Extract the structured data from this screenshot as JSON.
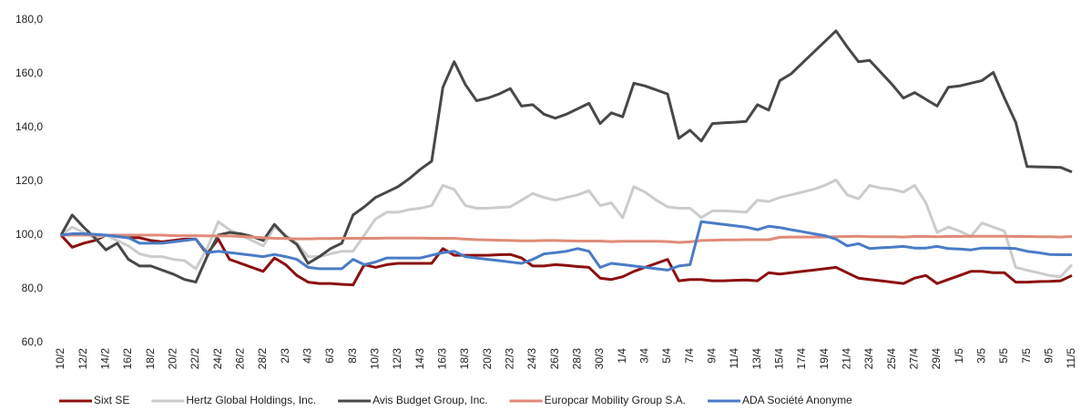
{
  "chart_data": {
    "type": "line",
    "categories": [
      "10/2",
      null,
      "12/2",
      null,
      "14/2",
      null,
      "16/2",
      null,
      "18/2",
      null,
      "20/2",
      null,
      "22/2",
      null,
      "24/2",
      null,
      "26/2",
      null,
      "28/2",
      null,
      "2/3",
      null,
      "4/3",
      null,
      "6/3",
      null,
      "8/3",
      null,
      "10/3",
      null,
      "12/3",
      null,
      "14/3",
      null,
      "16/3",
      null,
      "18/3",
      null,
      "20/3",
      null,
      "22/3",
      null,
      "24/3",
      null,
      "26/3",
      null,
      "28/3",
      null,
      "30/3",
      null,
      "1/4",
      null,
      "3/4",
      null,
      "5/4",
      null,
      "7/4",
      null,
      "9/4",
      null,
      "11/4",
      null,
      "13/4",
      null,
      "15/4",
      null,
      "17/4",
      null,
      "19/4",
      null,
      "21/4",
      null,
      "23/4",
      null,
      "25/4",
      null,
      "27/4",
      null,
      "29/4",
      null,
      "1/5",
      null,
      "3/5",
      null,
      "5/5",
      null,
      "7/5",
      null,
      "9/5",
      null,
      "11/5"
    ],
    "series": [
      {
        "name": "Sixt SE",
        "color": "#8b1010",
        "values": [
          100,
          95.5,
          97,
          98,
          100,
          99.5,
          99,
          99,
          98,
          97.5,
          98,
          98.5,
          98.5,
          93,
          98.5,
          91,
          89.5,
          88,
          86.5,
          91.5,
          89,
          85,
          82.5,
          82,
          82,
          81.7,
          81.5,
          89,
          88,
          89,
          89.5,
          89.5,
          89.5,
          89.5,
          95,
          92.5,
          92.5,
          92.5,
          92.5,
          92.7,
          92.8,
          91.5,
          88.5,
          88.5,
          89,
          88.7,
          88.3,
          88,
          84,
          83.5,
          84.5,
          86.5,
          88,
          89.5,
          91,
          83,
          83.5,
          83.5,
          83,
          83,
          83.2,
          83.3,
          83,
          86,
          85.5,
          86,
          86.5,
          87,
          87.5,
          88,
          86,
          84,
          83.5,
          83,
          82.5,
          82,
          84,
          85,
          82,
          83.5,
          85,
          86.5,
          86.5,
          86,
          86,
          82.5,
          82.5,
          82.7,
          82.8,
          83,
          85
        ]
      },
      {
        "name": "Hertz Global Holdings, Inc.",
        "color": "#cccccc",
        "values": [
          100,
          103,
          101,
          99,
          100,
          98,
          96,
          93,
          92,
          92,
          91,
          90.5,
          87.5,
          95,
          105,
          102,
          100,
          98,
          96,
          103,
          100,
          97,
          92,
          92,
          93,
          94,
          94,
          100,
          106,
          108.5,
          108.5,
          109.5,
          110,
          111,
          118.5,
          117,
          111,
          110,
          110,
          110.3,
          110.5,
          113,
          115.5,
          114,
          113,
          114,
          115,
          116.5,
          111,
          112,
          106.5,
          118,
          116,
          113,
          110.5,
          110,
          110,
          106.5,
          109,
          109,
          108.8,
          108.5,
          113,
          112.5,
          114,
          115,
          116,
          117,
          118.5,
          120.5,
          115,
          113.5,
          118.5,
          117.5,
          117,
          116,
          118.5,
          112,
          101,
          103,
          101.5,
          99.5,
          104.5,
          103,
          101.5,
          88,
          87,
          86,
          85,
          84.5,
          89
        ]
      },
      {
        "name": "Avis Budget Group, Inc.",
        "color": "#484848",
        "values": [
          100,
          107.5,
          103,
          99,
          94.5,
          97,
          91,
          88.5,
          88.5,
          87,
          85.5,
          83.5,
          82.5,
          92,
          100,
          101,
          100.5,
          99.5,
          98,
          104,
          99.5,
          96.5,
          89.5,
          92,
          95,
          97,
          107.5,
          110.5,
          114,
          116,
          118,
          121,
          124.5,
          127.5,
          155,
          164.5,
          156,
          150,
          151,
          152.5,
          154.5,
          148,
          148.5,
          145,
          143.5,
          145,
          147,
          149,
          141.5,
          145.5,
          144,
          156.5,
          155.5,
          154,
          152.5,
          136,
          139,
          135,
          141.5,
          141.8,
          142,
          142.3,
          148.5,
          146.5,
          157.5,
          160,
          164,
          168,
          172,
          176,
          170,
          164.5,
          165,
          160.5,
          156,
          151,
          153,
          150.5,
          148,
          155,
          155.5,
          156.5,
          157.5,
          160.5,
          151,
          142,
          125.5,
          125.4,
          125.3,
          125.2,
          123.5
        ]
      },
      {
        "name": "Europcar Mobility Group S.A.",
        "color": "#e08b78",
        "values": [
          100,
          100,
          100,
          100,
          100,
          100,
          100,
          100,
          100,
          100,
          99.8,
          99.8,
          99.8,
          99.7,
          99.7,
          99.7,
          99.5,
          99.3,
          99,
          98.8,
          98.7,
          98.6,
          98.6,
          98.7,
          98.7,
          98.8,
          98.8,
          98.8,
          98.8,
          98.9,
          98.9,
          98.9,
          98.9,
          98.8,
          98.8,
          98.8,
          98.5,
          98.3,
          98.2,
          98.1,
          98,
          97.9,
          97.9,
          98,
          98,
          97.9,
          97.8,
          97.8,
          97.8,
          97.6,
          97.7,
          97.7,
          97.7,
          97.7,
          97.6,
          97.3,
          97.5,
          98,
          98.1,
          98.2,
          98.2,
          98.3,
          98.3,
          98.3,
          99.2,
          99.3,
          99.3,
          99.3,
          99.3,
          99.4,
          99.5,
          99.6,
          99.4,
          99.4,
          99.4,
          99.3,
          99.5,
          99.5,
          99.4,
          99.5,
          99.5,
          99.6,
          99.6,
          99.6,
          99.6,
          99.5,
          99.5,
          99.4,
          99.4,
          99.3,
          99.5
        ]
      },
      {
        "name": "ADA Société Anonyme",
        "color": "#4a7cc6",
        "values": [
          100,
          100.5,
          100.5,
          100.3,
          100,
          99.5,
          99,
          97,
          97,
          97,
          97.5,
          98,
          98.5,
          93.5,
          94,
          93.5,
          93,
          92.5,
          92,
          92.8,
          92,
          91,
          88,
          87.5,
          87.5,
          87.5,
          91,
          89,
          90,
          91.5,
          91.5,
          91.5,
          91.5,
          92.5,
          93.5,
          94,
          92,
          91.5,
          91,
          90.5,
          90,
          89.5,
          91,
          93,
          93.5,
          94,
          95,
          94,
          88,
          89.5,
          89,
          88.5,
          88,
          87.5,
          87,
          88.5,
          89,
          105,
          104.5,
          104,
          103.5,
          103,
          102,
          103.3,
          102.8,
          102,
          101.3,
          100.5,
          99.8,
          98.5,
          96,
          96.8,
          95,
          95.3,
          95.5,
          95.8,
          95.2,
          95.2,
          95.8,
          95,
          94.8,
          94.5,
          95.2,
          95.2,
          95.2,
          95,
          94,
          93.5,
          92.8,
          92.7,
          92.7
        ]
      }
    ],
    "ylim": [
      60,
      180
    ],
    "yticks": [
      {
        "value": 60,
        "label": "60,0"
      },
      {
        "value": 80,
        "label": "80,0"
      },
      {
        "value": 100,
        "label": "100,0"
      },
      {
        "value": 120,
        "label": "120,0"
      },
      {
        "value": 140,
        "label": "140,0"
      },
      {
        "value": 160,
        "label": "160,0"
      },
      {
        "value": 180,
        "label": "180,0"
      }
    ],
    "grid": false,
    "legend": "bottom"
  }
}
